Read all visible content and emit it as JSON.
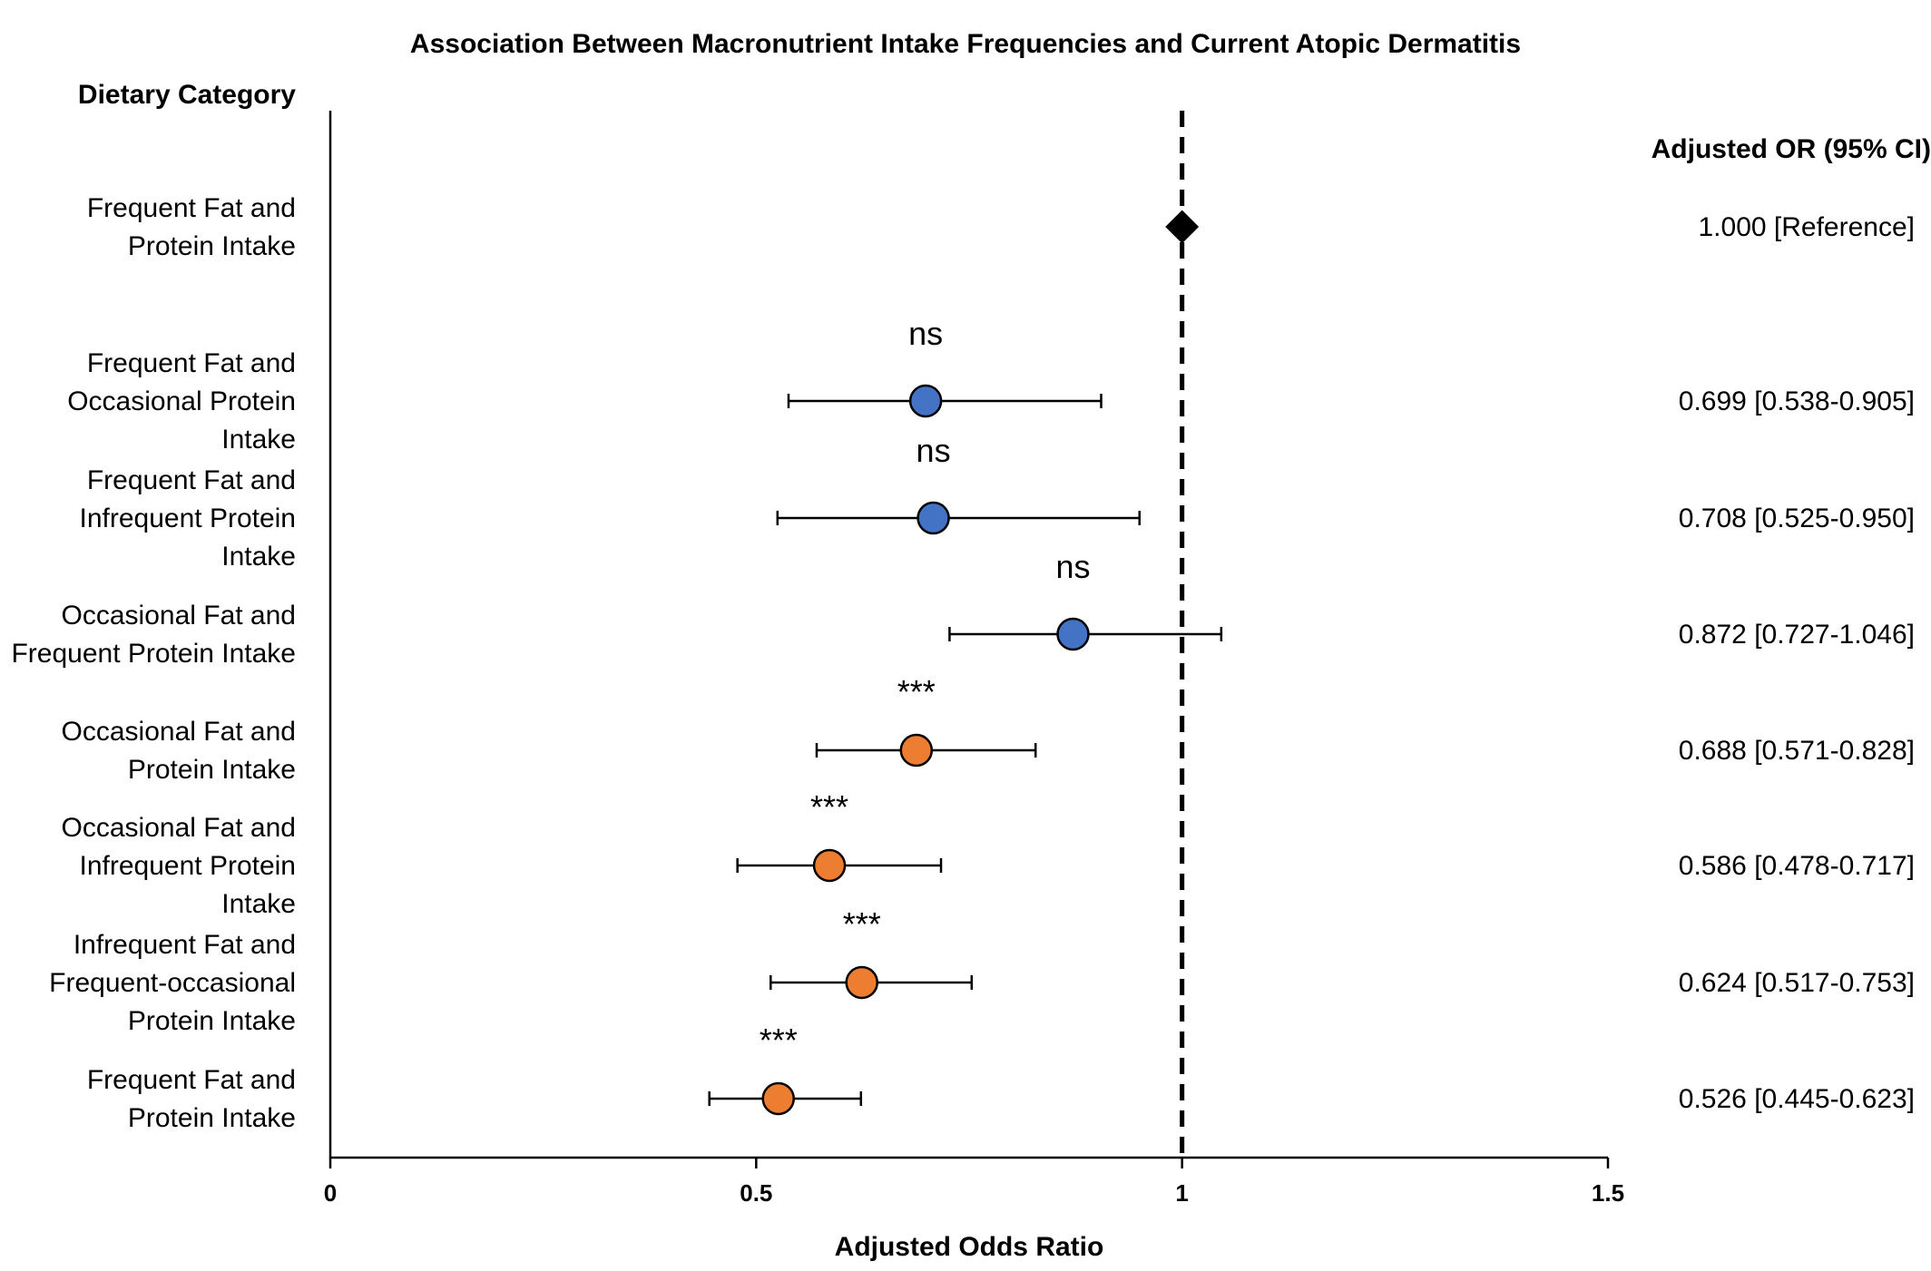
{
  "chart_data": {
    "type": "forest",
    "title": "Association Between Macronutrient Intake Frequencies and Current Atopic Dermatitis",
    "y_header": "Dietary Category",
    "ci_header": "Adjusted OR (95% CI)",
    "xlabel": "Adjusted Odds Ratio",
    "xlim": [
      0,
      1.5
    ],
    "xticks": [
      0,
      0.5,
      1,
      1.5
    ],
    "xtick_labels": [
      "0",
      "0.5",
      "1",
      "1.5"
    ],
    "reference_line": 1,
    "colors": {
      "reference": "#000000",
      "not_significant": "#4472c4",
      "significant": "#ed7d31"
    },
    "rows": [
      {
        "label_lines": [
          "Frequent Fat and",
          "Protein Intake"
        ],
        "or": 1.0,
        "lower": null,
        "upper": null,
        "ci_text": "1.000 [Reference]",
        "sig": "",
        "group": "reference"
      },
      {
        "label_lines": [
          "Frequent Fat and",
          "Occasional Protein",
          "Intake"
        ],
        "or": 0.699,
        "lower": 0.538,
        "upper": 0.905,
        "ci_text": "0.699 [0.538-0.905]",
        "sig": "ns",
        "group": "not_significant"
      },
      {
        "label_lines": [
          "Frequent Fat and",
          "Infrequent Protein",
          "Intake"
        ],
        "or": 0.708,
        "lower": 0.525,
        "upper": 0.95,
        "ci_text": "0.708 [0.525-0.950]",
        "sig": "ns",
        "group": "not_significant"
      },
      {
        "label_lines": [
          "Occasional Fat and",
          "Frequent Protein Intake"
        ],
        "or": 0.872,
        "lower": 0.727,
        "upper": 1.046,
        "ci_text": "0.872 [0.727-1.046]",
        "sig": "ns",
        "group": "not_significant"
      },
      {
        "label_lines": [
          "Occasional Fat and",
          "Protein Intake"
        ],
        "or": 0.688,
        "lower": 0.571,
        "upper": 0.828,
        "ci_text": "0.688 [0.571-0.828]",
        "sig": "***",
        "group": "significant"
      },
      {
        "label_lines": [
          "Occasional Fat and",
          "Infrequent Protein",
          "Intake"
        ],
        "or": 0.586,
        "lower": 0.478,
        "upper": 0.717,
        "ci_text": "0.586 [0.478-0.717]",
        "sig": "***",
        "group": "significant"
      },
      {
        "label_lines": [
          "Infrequent Fat and",
          "Frequent-occasional",
          "Protein Intake"
        ],
        "or": 0.624,
        "lower": 0.517,
        "upper": 0.753,
        "ci_text": "0.624 [0.517-0.753]",
        "sig": "***",
        "group": "significant"
      },
      {
        "label_lines": [
          "Frequent Fat and",
          "Protein Intake"
        ],
        "or": 0.526,
        "lower": 0.445,
        "upper": 0.623,
        "ci_text": "0.526 [0.445-0.623]",
        "sig": "***",
        "group": "significant"
      }
    ]
  }
}
